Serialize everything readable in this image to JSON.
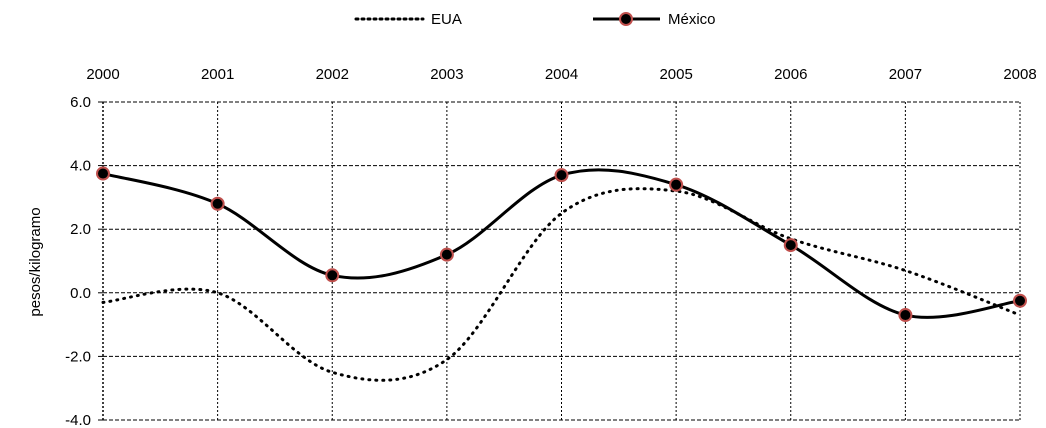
{
  "chart_data": {
    "type": "line",
    "x": [
      "2000",
      "2001",
      "2002",
      "2003",
      "2004",
      "2005",
      "2006",
      "2007",
      "2008"
    ],
    "series": [
      {
        "name": "EUA",
        "style": "dotted",
        "color": "#000000",
        "values": [
          -0.3,
          0.0,
          -2.5,
          -2.1,
          2.5,
          3.2,
          1.7,
          0.7,
          -0.7
        ]
      },
      {
        "name": "México",
        "style": "solid-marker",
        "color": "#000000",
        "marker_edge": "#c0504d",
        "values": [
          3.75,
          2.8,
          0.55,
          1.2,
          3.7,
          3.4,
          1.5,
          -0.7,
          -0.25
        ]
      }
    ],
    "ylabel": "pesos/kilogramo",
    "ylim": [
      -4.0,
      6.0
    ],
    "yticks": [
      "6.0",
      "4.0",
      "2.0",
      "0.0",
      "-2.0",
      "-4.0"
    ],
    "x_axis_position": "top",
    "grid": true,
    "legend_position": "top-center"
  }
}
